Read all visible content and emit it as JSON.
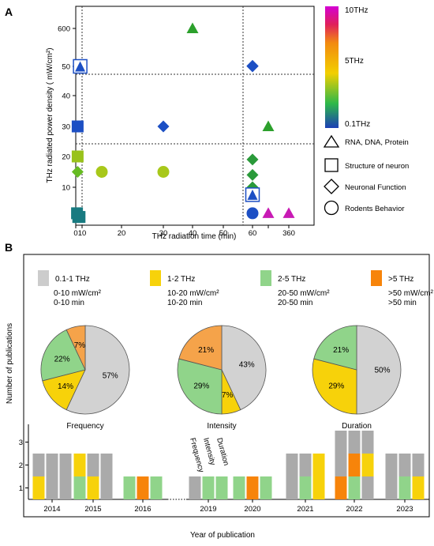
{
  "panels": {
    "a": "A",
    "b": "B"
  },
  "chart_data": [
    {
      "type": "scatter",
      "xlabel": "THz radiation time (min)",
      "ylabel": "THz radiated power density ( mW/cm²)",
      "xticks": [
        "0",
        "10",
        "20",
        "30",
        "40",
        "50",
        "60",
        "",
        "360"
      ],
      "yticks": [
        "10",
        "20",
        "30",
        "40",
        "50",
        "600"
      ],
      "grid": "dashed dividers at x=10, x=57, y=23.5, y=47",
      "colorbar": {
        "labels": [
          "10THz",
          "5THz",
          "0.1THz"
        ],
        "stops": [
          "#1c3fb5",
          "#2db84a",
          "#f2cf00",
          "#f28a10",
          "#e0205a",
          "#d400d4"
        ]
      },
      "legend": [
        {
          "label": "RNA, DNA, Protein",
          "shape": "triangle"
        },
        {
          "label": "Structure of neuron",
          "shape": "square"
        },
        {
          "label": "Neuronal Function",
          "shape": "diamond"
        },
        {
          "label": "Rodents Behavior",
          "shape": "circle"
        }
      ],
      "points": [
        {
          "x": 7,
          "y": 50,
          "shape": "triangle-in-square",
          "color": "#1c4fc4"
        },
        {
          "x": 40,
          "y": 600,
          "shape": "triangle",
          "color": "#2ca02c"
        },
        {
          "x": 60,
          "y": 57,
          "shape": "diamond",
          "color": "#1c4fc4"
        },
        {
          "x": 60,
          "y": 55,
          "shape": "diamond",
          "color": "#1c4fc4"
        },
        {
          "x": 60,
          "y": 53,
          "shape": "diamond",
          "color": "#1c4fc4"
        },
        {
          "x": 60,
          "y": 51,
          "shape": "diamond",
          "color": "#1c4fc4"
        },
        {
          "x": 3,
          "y": 30,
          "shape": "square",
          "color": "#1c4fc4"
        },
        {
          "x": 30,
          "y": 30,
          "shape": "diamond",
          "color": "#1c4fc4"
        },
        {
          "x": 120,
          "y": 30,
          "shape": "triangle",
          "color": "#2ca02c"
        },
        {
          "x": 3,
          "y": 20,
          "shape": "square",
          "color": "#99c21b"
        },
        {
          "x": 3,
          "y": 15,
          "shape": "diamond",
          "color": "#66bb22"
        },
        {
          "x": 15,
          "y": 15,
          "shape": "circle",
          "color": "#a8c81a"
        },
        {
          "x": 30,
          "y": 15,
          "shape": "circle",
          "color": "#a8c81a"
        },
        {
          "x": 60,
          "y": 19,
          "shape": "diamond",
          "color": "#2a9a3a"
        },
        {
          "x": 60,
          "y": 14,
          "shape": "diamond",
          "color": "#2a9a3a"
        },
        {
          "x": 60,
          "y": 10,
          "shape": "diamond",
          "color": "#2a9a3a"
        },
        {
          "x": 60,
          "y": 8,
          "shape": "triangle-in-square",
          "color": "#1c4fc4"
        },
        {
          "x": 60,
          "y": 3,
          "shape": "circle",
          "color": "#1c4fc4"
        },
        {
          "x": 120,
          "y": 3,
          "shape": "triangle",
          "color": "#c81ab4"
        },
        {
          "x": 360,
          "y": 3,
          "shape": "triangle",
          "color": "#c81ab4"
        },
        {
          "x": 2,
          "y": 3,
          "shape": "square",
          "color": "#187a80"
        },
        {
          "x": 4,
          "y": 2,
          "shape": "square",
          "color": "#187a80"
        },
        {
          "x": 6,
          "y": 2,
          "shape": "square",
          "color": "#187a80"
        }
      ]
    },
    {
      "type": "pie",
      "legend": [
        {
          "color": "#cccccc",
          "lines": [
            "0.1-1 THz",
            "0-10 mW/cm²",
            "0-10 min"
          ]
        },
        {
          "color": "#f7d20a",
          "lines": [
            "1-2 THz",
            "10-20 mW/cm²",
            "10-20 min"
          ]
        },
        {
          "color": "#90d48a",
          "lines": [
            "2-5 THz",
            "20-50 mW/cm²",
            "20-50 min"
          ]
        },
        {
          "color": "#f7840a",
          "lines": [
            ">5 THz",
            ">50 mW/cm²",
            ">50 min"
          ]
        }
      ],
      "pies": [
        {
          "title": "Frequency",
          "slices": [
            {
              "value": 57,
              "label": "57%",
              "color": "#d2d2d2"
            },
            {
              "value": 14,
              "label": "14%",
              "color": "#f7d20a"
            },
            {
              "value": 22,
              "label": "22%",
              "color": "#90d48a"
            },
            {
              "value": 7,
              "label": "7%",
              "color": "#f5a34a"
            }
          ]
        },
        {
          "title": "Intensity",
          "slices": [
            {
              "value": 43,
              "label": "43%",
              "color": "#d2d2d2"
            },
            {
              "value": 7,
              "label": "7%",
              "color": "#f7d20a"
            },
            {
              "value": 29,
              "label": "29%",
              "color": "#90d48a"
            },
            {
              "value": 21,
              "label": "21%",
              "color": "#f5a34a"
            }
          ]
        },
        {
          "title": "Duration",
          "slices": [
            {
              "value": 50,
              "label": "50%",
              "color": "#d2d2d2"
            },
            {
              "value": 29,
              "label": "29%",
              "color": "#f7d20a"
            },
            {
              "value": 21,
              "label": "21%",
              "color": "#90d48a"
            }
          ]
        }
      ]
    },
    {
      "type": "bar",
      "xlabel": "Year of publication",
      "ylabel": "Number of publications",
      "yticks": [
        "1",
        "2",
        "3"
      ],
      "stack_labels": [
        "Frequency",
        "Intensity",
        "Duration"
      ],
      "categories": [
        "2014",
        "2015",
        "2016",
        "2019",
        "2020",
        "2021",
        "2022",
        "2023"
      ],
      "groups": [
        {
          "year": "2014",
          "stacks": [
            [
              "#f7d20a",
              "#aaaaaa"
            ],
            [
              "#aaaaaa",
              "#aaaaaa"
            ],
            [
              "#aaaaaa",
              "#aaaaaa"
            ]
          ]
        },
        {
          "year": "2015",
          "stacks": [
            [
              "#90d48a",
              "#f7d20a"
            ],
            [
              "#f7d20a",
              "#aaaaaa"
            ],
            [
              "#aaaaaa",
              "#aaaaaa"
            ]
          ]
        },
        {
          "year": "2016",
          "stacks": [
            [
              "#90d48a"
            ],
            [
              "#f7840a"
            ],
            [
              "#90d48a"
            ]
          ]
        },
        {
          "year": "2019",
          "stacks": [
            [
              "#aaaaaa"
            ],
            [
              "#90d48a"
            ],
            [
              "#90d48a"
            ]
          ]
        },
        {
          "year": "2020",
          "stacks": [
            [
              "#90d48a"
            ],
            [
              "#f7840a"
            ],
            [
              "#90d48a"
            ]
          ]
        },
        {
          "year": "2021",
          "stacks": [
            [
              "#aaaaaa",
              "#aaaaaa"
            ],
            [
              "#90d48a",
              "#aaaaaa"
            ],
            [
              "#f7d20a",
              "#f7d20a"
            ]
          ]
        },
        {
          "year": "2022",
          "stacks": [
            [
              "#f7840a",
              "#aaaaaa",
              "#aaaaaa"
            ],
            [
              "#90d48a",
              "#f7840a",
              "#aaaaaa"
            ],
            [
              "#aaaaaa",
              "#f7d20a",
              "#aaaaaa"
            ]
          ]
        },
        {
          "year": "2023",
          "stacks": [
            [
              "#aaaaaa",
              "#aaaaaa"
            ],
            [
              "#90d48a",
              "#aaaaaa"
            ],
            [
              "#f7d20a",
              "#aaaaaa"
            ]
          ]
        }
      ]
    }
  ]
}
